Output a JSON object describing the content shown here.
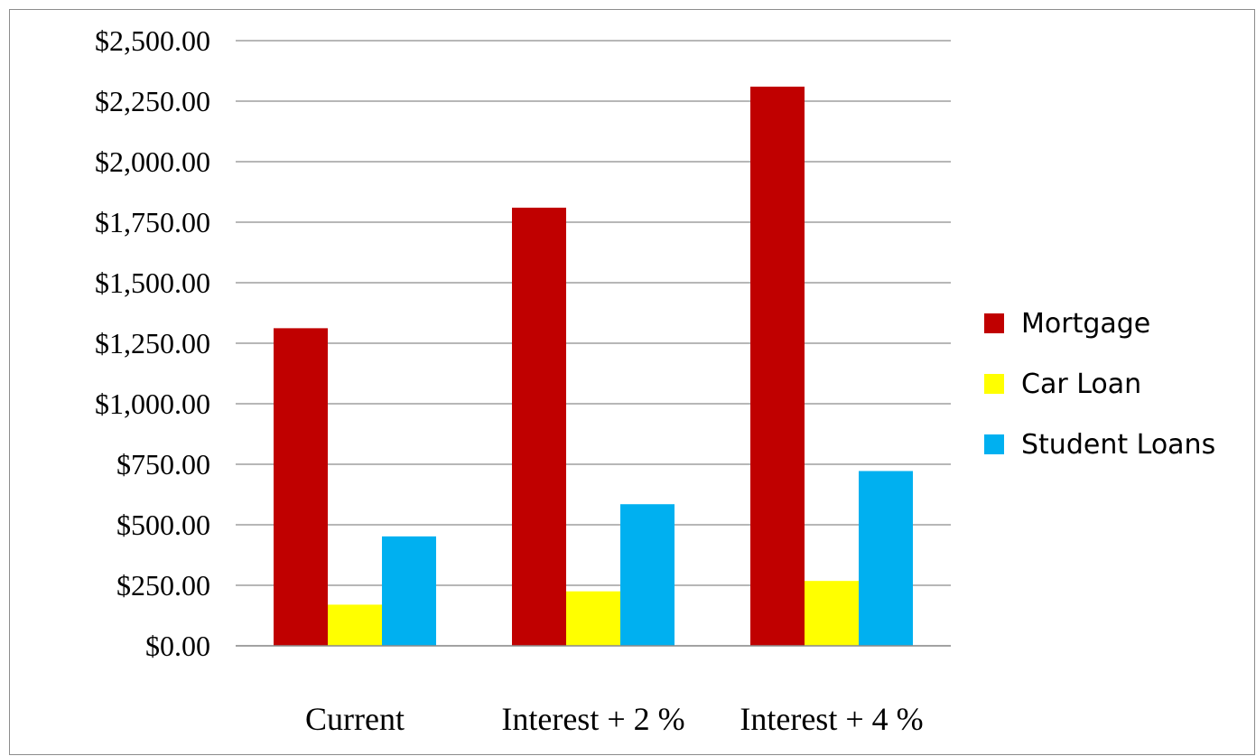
{
  "chart_data": {
    "type": "bar",
    "title": "",
    "xlabel": "",
    "ylabel": "",
    "categories": [
      "Current",
      "Interest + 2 %",
      "Interest + 4 %"
    ],
    "series": [
      {
        "name": "Mortgage",
        "color": "#c00000",
        "values": [
          1312,
          1810,
          2310
        ]
      },
      {
        "name": "Car Loan",
        "color": "#ffff00",
        "values": [
          170,
          225,
          268
        ]
      },
      {
        "name": "Student Loans",
        "color": "#00b0f0",
        "values": [
          452,
          585,
          722
        ]
      }
    ],
    "ylim": [
      0,
      2500
    ],
    "yticks": [
      0,
      250,
      500,
      750,
      1000,
      1250,
      1500,
      1750,
      2000,
      2250,
      2500
    ],
    "ytick_labels": [
      "$0.00",
      "$250.00",
      "$500.00",
      "$750.00",
      "$1,000.00",
      "$1,250.00",
      "$1,500.00",
      "$1,750.00",
      "$2,000.00",
      "$2,250.00",
      "$2,500.00"
    ],
    "grid": true,
    "legend_position": "right"
  }
}
